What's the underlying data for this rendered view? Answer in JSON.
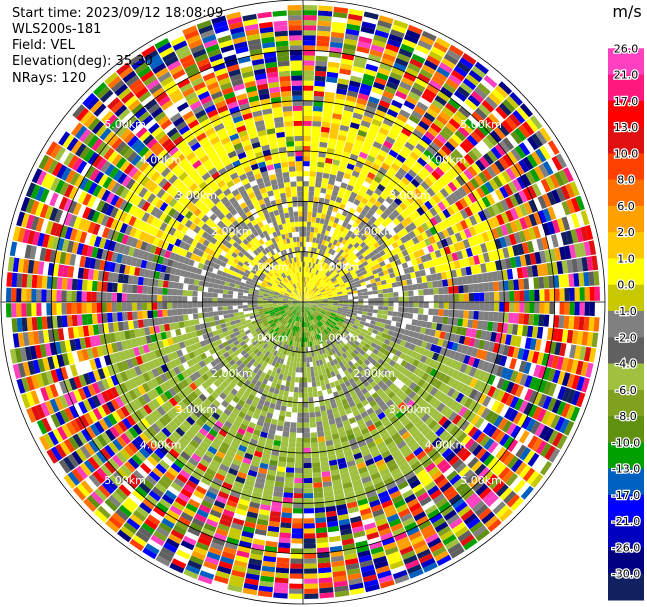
{
  "header": {
    "start_time": "Start time: 2023/09/12 18:08:09",
    "instrument": "WLS200s-181",
    "field": "Field: VEL",
    "elevation": "Elevation(deg): 35.30",
    "nrays": "NRays: 120"
  },
  "chart_data": {
    "type": "heatmap",
    "projection": "polar-ppi",
    "field": "VEL",
    "units": "m/s",
    "nrays": 120,
    "max_range_km": 6,
    "range_ring_labels": [
      "1.00km",
      "2.00km",
      "3.00km",
      "4.00km",
      "5.00km"
    ],
    "colorbar": {
      "title": "m/s",
      "ticks": [
        "26.0",
        "21.0",
        "17.0",
        "13.0",
        "10.0",
        "8.0",
        "6.0",
        "2.0",
        "1.0",
        "0.0",
        "-1.0",
        "-2.0",
        "-4.0",
        "-6.0",
        "-8.0",
        "-10.0",
        "-13.0",
        "-17.0",
        "-21.0",
        "-26.0",
        "-30.0"
      ],
      "colors": [
        "#ffffff",
        "#ff40c0",
        "#ff1880",
        "#ff0000",
        "#e01010",
        "#ff4000",
        "#ff7000",
        "#ffa000",
        "#ffc800",
        "#ffff00",
        "#c8c800",
        "#808080",
        "#606060",
        "#a0c040",
        "#80a020",
        "#609010",
        "#00a000",
        "#0060c0",
        "#0000ff",
        "#0000c0",
        "#000080",
        "#102060"
      ]
    }
  }
}
